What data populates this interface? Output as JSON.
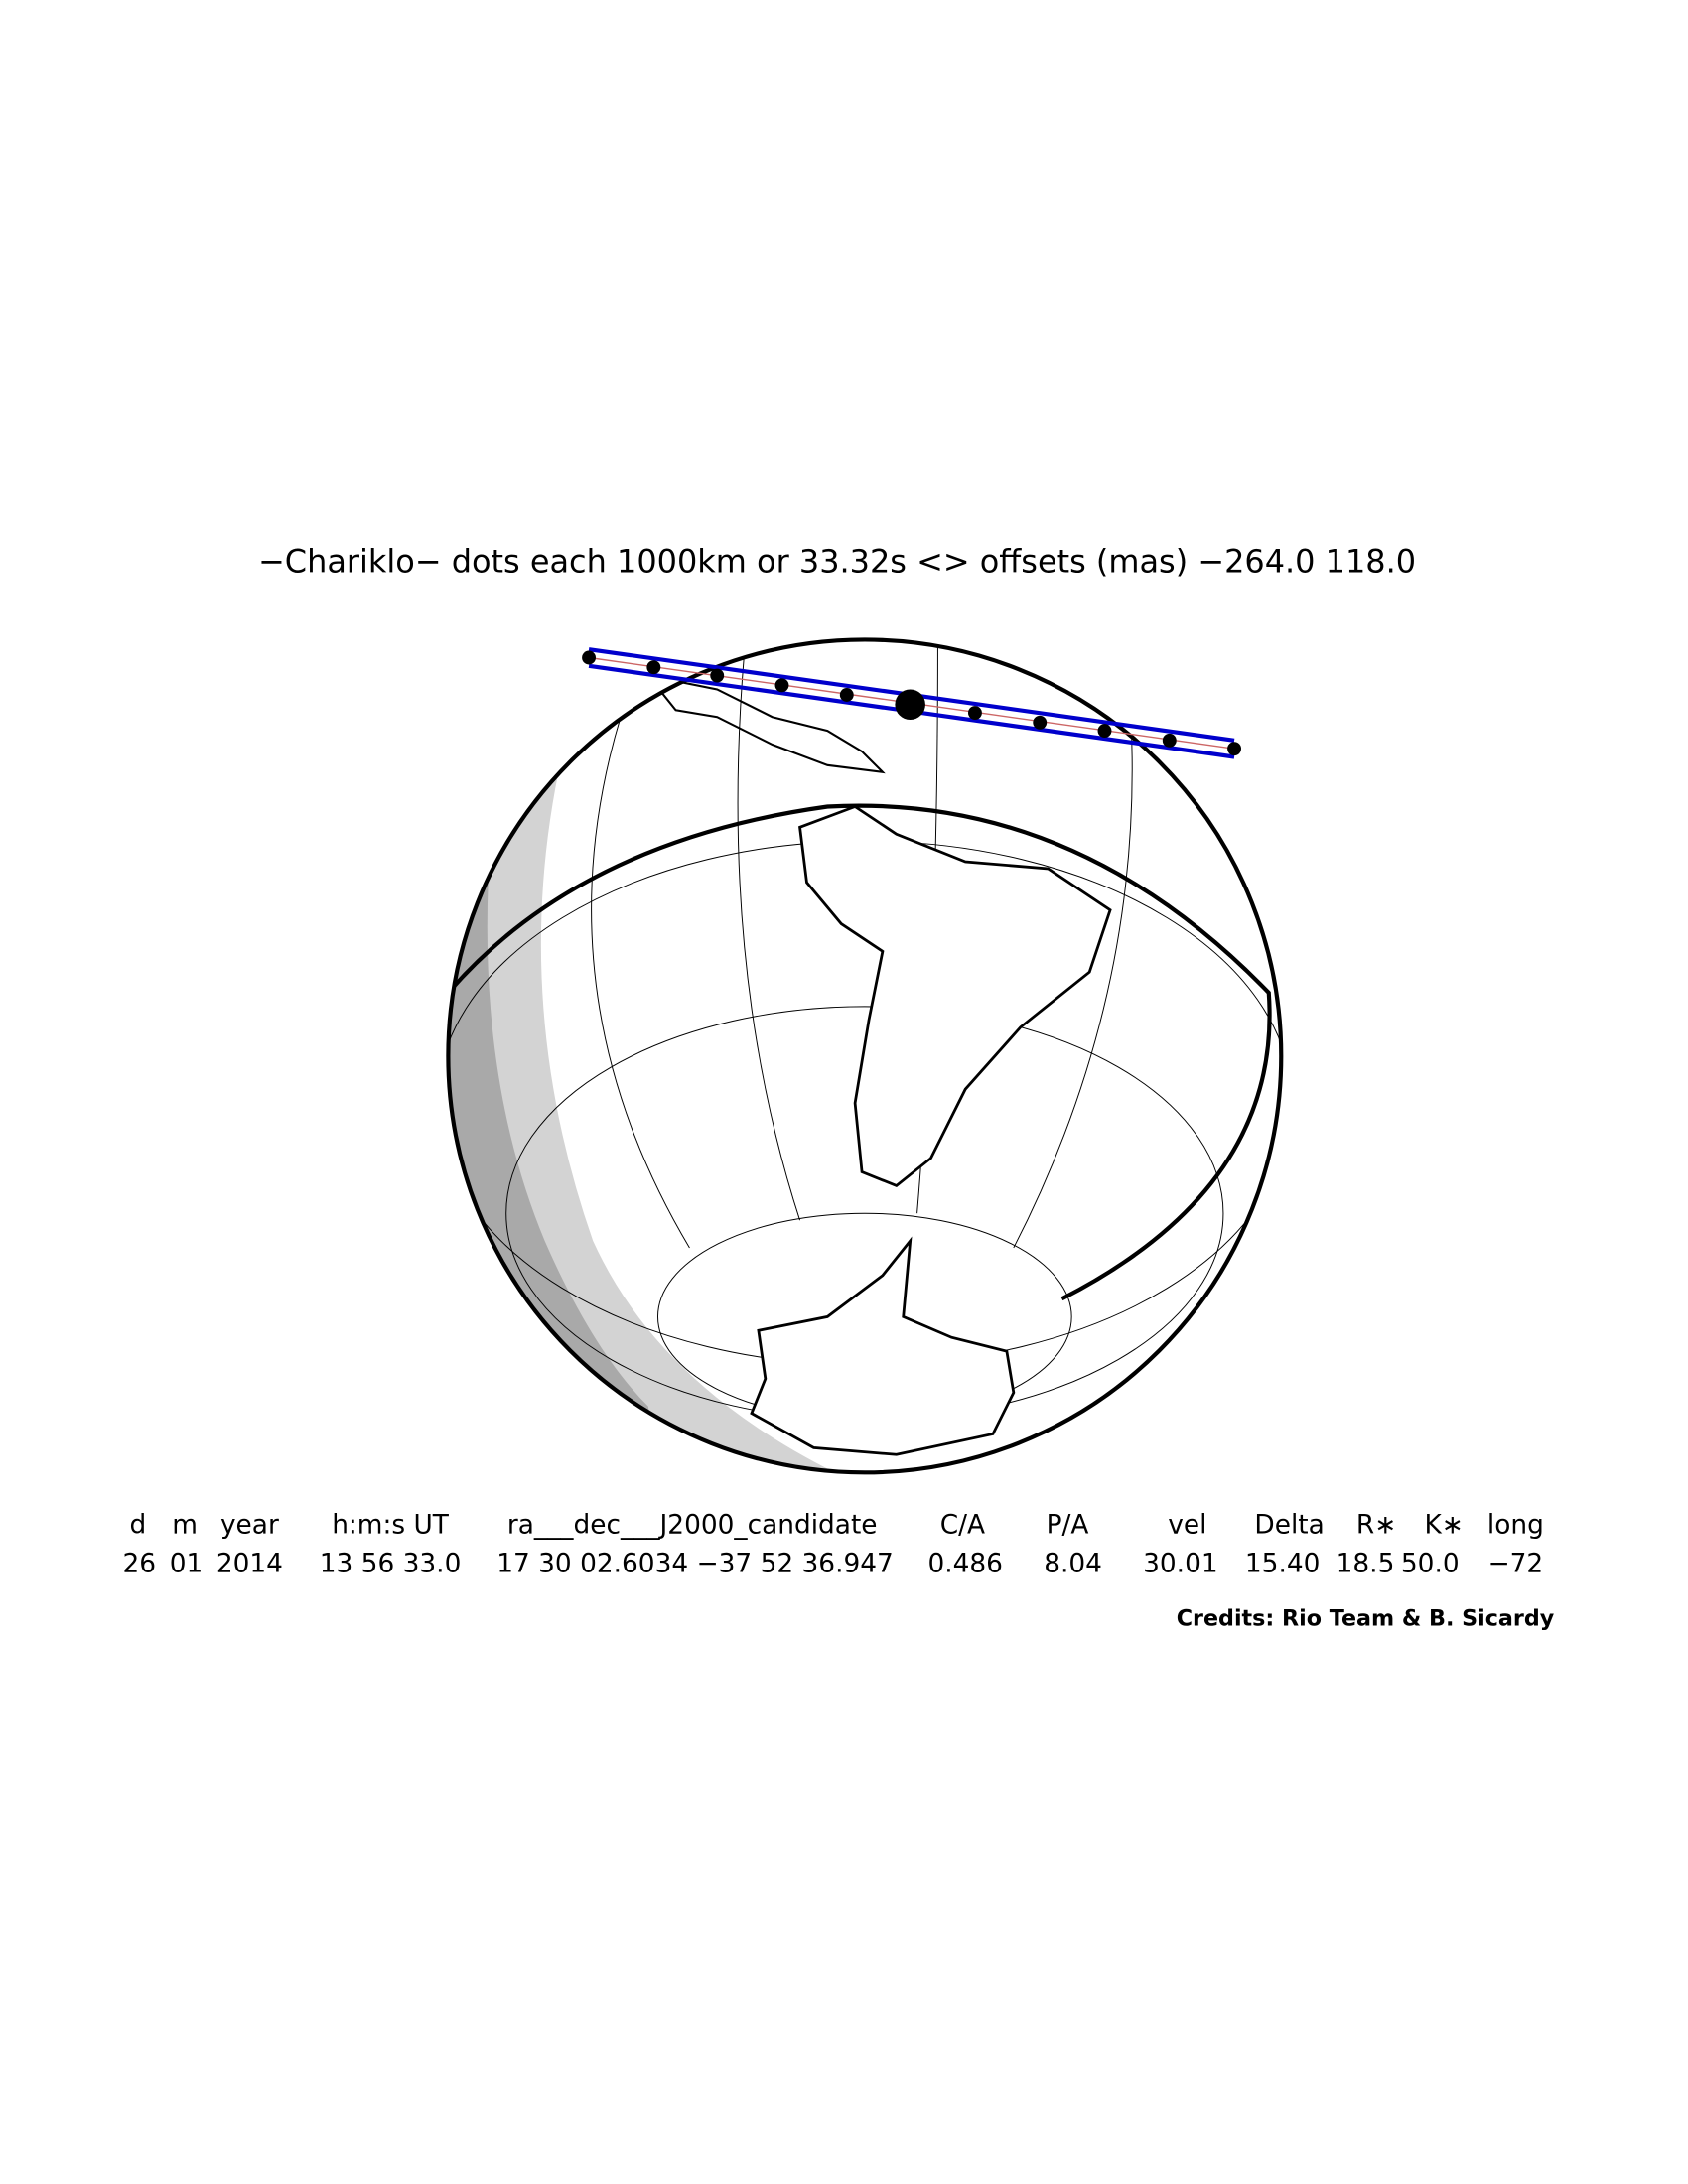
{
  "title": "−Chariklo− dots each 1000km or 33.32s <> offsets (mas) −264.0  118.0",
  "table": {
    "headers": [
      "d",
      "m",
      "year",
      "h:m:s UT",
      "ra___dec___J2000_candidate",
      "C/A",
      "P/A",
      "vel",
      "Delta",
      "R∗",
      "K∗",
      "long"
    ],
    "rows": [
      [
        "26",
        "01",
        "2014",
        "13 56 33.0",
        "17 30 02.6034 −37 52 36.947",
        "0.486",
        "8.04",
        "30.01",
        "15.40",
        "18.5",
        "50.0",
        "−72"
      ]
    ]
  },
  "credits": "Credits: Rio Team & B. Sicardy"
}
